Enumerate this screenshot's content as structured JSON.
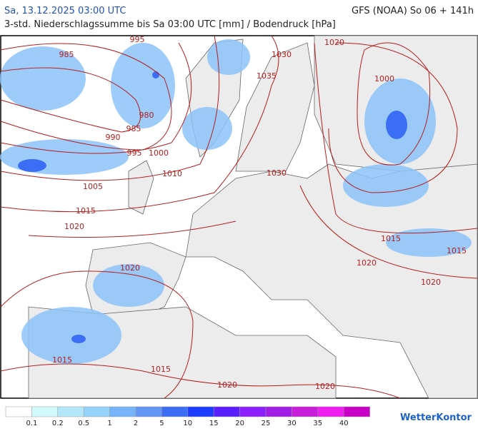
{
  "header": {
    "date": "Sa, 13.12.2025 03:00 UTC",
    "model": "GFS (NOAA) So 06 + 141h",
    "subtitle": "3-std. Niederschlagssumme bis Sa 03:00 UTC [mm] / Bodendruck [hPa]"
  },
  "isobar_labels": [
    "985",
    "995",
    "1020",
    "1030",
    "1035",
    "1000",
    "980",
    "985",
    "990",
    "995",
    "1000",
    "1010",
    "1030",
    "1005",
    "1015",
    "1020",
    "1015",
    "1015",
    "1020",
    "1020",
    "1020",
    "1015",
    "1015",
    "1020",
    "1020"
  ],
  "legend": {
    "labels": [
      "0.1",
      "0.2",
      "0.5",
      "1",
      "2",
      "5",
      "10",
      "15",
      "20",
      "25",
      "30",
      "35",
      "40"
    ],
    "colors": [
      "#ffffff",
      "#d2fafa",
      "#b4e6fa",
      "#96d2fa",
      "#78b4fa",
      "#6496f5",
      "#3c6ef5",
      "#1e3cff",
      "#5a1eff",
      "#8c1eff",
      "#a01ee6",
      "#c81edc",
      "#f01ef0",
      "#c800c8"
    ]
  },
  "logo": "WetterKontor"
}
